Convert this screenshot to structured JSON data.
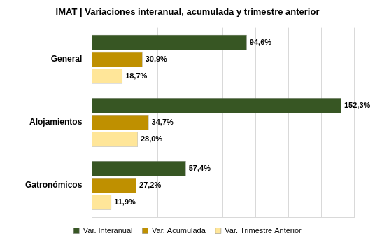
{
  "chart_data": {
    "type": "bar",
    "orientation": "horizontal",
    "title": "IMAT | Variaciones interanual, acumulada y trimestre anterior",
    "categories": [
      "General",
      "Alojamientos",
      "Gatronómicos"
    ],
    "series": [
      {
        "name": "Var. Interanual",
        "color": "#375623",
        "values": [
          94.6,
          152.3,
          57.4
        ],
        "value_labels": [
          "94,6%",
          "152,3%",
          "57,4%"
        ]
      },
      {
        "name": "Var. Acumulada",
        "color": "#BF9000",
        "values": [
          30.9,
          34.7,
          27.2
        ],
        "value_labels": [
          "30,9%",
          "34,7%",
          "27,2%"
        ]
      },
      {
        "name": "Var. Trimestre Anterior",
        "color": "#FFE699",
        "values": [
          18.7,
          28.0,
          11.9
        ],
        "value_labels": [
          "18,7%",
          "28,0%",
          "11,9%"
        ]
      }
    ],
    "xlim": [
      0,
      160
    ],
    "xticks": [
      0,
      20,
      40,
      60,
      80,
      100,
      120,
      140,
      160
    ],
    "tick_labels": "y",
    "grid": true,
    "legend": "bottom",
    "data_labels": true
  }
}
